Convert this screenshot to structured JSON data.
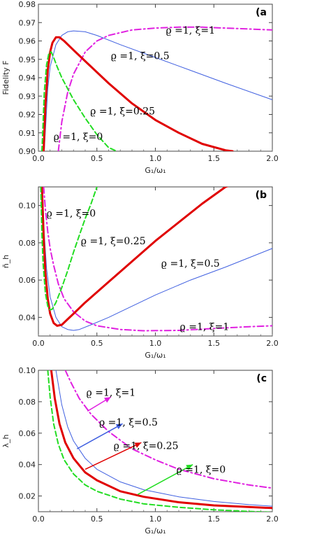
{
  "chart_data": [
    {
      "type": "line",
      "panel_label": "(a",
      "xlabel": "G₁/ω₁",
      "ylabel": "Fidelity F",
      "xlim": [
        0,
        2
      ],
      "ylim": [
        0.9,
        0.98
      ],
      "xticks": [
        "0.0",
        "0.5",
        "1.0",
        "1.5",
        "2.0"
      ],
      "yticks": [
        "0.90",
        "0.91",
        "0.92",
        "0.93",
        "0.94",
        "0.95",
        "0.96",
        "0.97",
        "0.98"
      ],
      "grid": false,
      "series": [
        {
          "name": "ϱ =1, ξ=1",
          "style": "dashdot",
          "color": "#e020e0",
          "x": [
            0.17,
            0.2,
            0.25,
            0.3,
            0.4,
            0.5,
            0.6,
            0.8,
            1.0,
            1.2,
            1.4,
            1.6,
            1.8,
            2.0
          ],
          "y": [
            0.9,
            0.916,
            0.932,
            0.942,
            0.954,
            0.96,
            0.963,
            0.966,
            0.967,
            0.9675,
            0.9675,
            0.967,
            0.9665,
            0.966
          ]
        },
        {
          "name": "ϱ =1, ξ=0.5",
          "style": "solid-thin",
          "color": "#3f5fe0",
          "x": [
            0.05,
            0.08,
            0.1,
            0.15,
            0.2,
            0.25,
            0.3,
            0.4,
            0.5,
            0.7,
            1.0,
            1.3,
            1.6,
            2.0
          ],
          "y": [
            0.9,
            0.934,
            0.946,
            0.958,
            0.963,
            0.965,
            0.9655,
            0.965,
            0.963,
            0.958,
            0.951,
            0.944,
            0.937,
            0.928
          ]
        },
        {
          "name": "ϱ =1, ξ=0.25",
          "style": "solid-thick",
          "color": "#e00000",
          "x": [
            0.045,
            0.06,
            0.08,
            0.1,
            0.12,
            0.15,
            0.18,
            0.22,
            0.3,
            0.4,
            0.6,
            0.8,
            1.0,
            1.2,
            1.4,
            1.6,
            1.66
          ],
          "y": [
            0.9,
            0.925,
            0.944,
            0.954,
            0.959,
            0.962,
            0.962,
            0.96,
            0.955,
            0.949,
            0.937,
            0.926,
            0.917,
            0.91,
            0.904,
            0.9005,
            0.9
          ]
        },
        {
          "name": "ϱ =1, ξ=0",
          "style": "dashed",
          "color": "#22dd22",
          "x": [
            0.03,
            0.04,
            0.05,
            0.07,
            0.09,
            0.11,
            0.13,
            0.16,
            0.2,
            0.3,
            0.4,
            0.5,
            0.6,
            0.67
          ],
          "y": [
            0.9,
            0.915,
            0.932,
            0.947,
            0.9535,
            0.954,
            0.951,
            0.946,
            0.94,
            0.928,
            0.918,
            0.909,
            0.902,
            0.9
          ]
        }
      ],
      "annotations": [
        {
          "text": "ϱ =1, ξ=1",
          "x": 1.3,
          "y": 0.966
        },
        {
          "text": "ϱ =1, ξ=0.5",
          "x": 0.87,
          "y": 0.952
        },
        {
          "text": "ϱ =1, ξ=0.25",
          "x": 0.72,
          "y": 0.922
        },
        {
          "text": "ϱ =1, ξ=0",
          "x": 0.34,
          "y": 0.908
        }
      ]
    },
    {
      "type": "line",
      "panel_label": "(b",
      "xlabel": "G₁/ω₁",
      "ylabel": "n̄_h",
      "xlim": [
        0,
        2
      ],
      "ylim": [
        0.03,
        0.11
      ],
      "xticks": [
        "0.0",
        "0.5",
        "1.0",
        "1.5",
        "2.0"
      ],
      "yticks": [
        "0.04",
        "0.06",
        "0.08",
        "0.10"
      ],
      "grid": false,
      "series": [
        {
          "name": "ϱ =1, ξ=1",
          "style": "dashdot",
          "color": "#e020e0",
          "x": [
            0.045,
            0.06,
            0.08,
            0.1,
            0.13,
            0.17,
            0.22,
            0.3,
            0.4,
            0.5,
            0.7,
            0.9,
            1.2,
            1.5,
            1.8,
            2.0
          ],
          "y": [
            0.11,
            0.098,
            0.086,
            0.077,
            0.068,
            0.058,
            0.05,
            0.043,
            0.038,
            0.0355,
            0.0335,
            0.0328,
            0.033,
            0.034,
            0.035,
            0.0355
          ]
        },
        {
          "name": "ϱ =1, ξ=0.5",
          "style": "solid-thin",
          "color": "#3f5fe0",
          "x": [
            0.035,
            0.05,
            0.07,
            0.1,
            0.15,
            0.2,
            0.25,
            0.3,
            0.35,
            0.45,
            0.6,
            0.8,
            1.0,
            1.3,
            1.6,
            2.0
          ],
          "y": [
            0.11,
            0.085,
            0.066,
            0.051,
            0.04,
            0.035,
            0.0335,
            0.033,
            0.0335,
            0.036,
            0.04,
            0.046,
            0.052,
            0.06,
            0.067,
            0.077
          ]
        },
        {
          "name": "ϱ =1, ξ=0.25",
          "style": "solid-thick",
          "color": "#e00000",
          "x": [
            0.03,
            0.045,
            0.06,
            0.08,
            0.1,
            0.13,
            0.16,
            0.2,
            0.25,
            0.3,
            0.4,
            0.6,
            0.8,
            1.0,
            1.2,
            1.4,
            1.6,
            1.65
          ],
          "y": [
            0.11,
            0.083,
            0.064,
            0.05,
            0.042,
            0.037,
            0.0355,
            0.036,
            0.039,
            0.042,
            0.048,
            0.059,
            0.07,
            0.081,
            0.091,
            0.101,
            0.11,
            0.111
          ]
        },
        {
          "name": "ϱ =1, ξ=0",
          "style": "dashed",
          "color": "#22dd22",
          "x": [
            0.02,
            0.03,
            0.04,
            0.06,
            0.08,
            0.1,
            0.12,
            0.15,
            0.2,
            0.25,
            0.3,
            0.35,
            0.4,
            0.45,
            0.5
          ],
          "y": [
            0.11,
            0.085,
            0.069,
            0.053,
            0.046,
            0.044,
            0.0445,
            0.048,
            0.056,
            0.065,
            0.075,
            0.084,
            0.093,
            0.101,
            0.11
          ]
        }
      ],
      "annotations": [
        {
          "text": "ϱ =1, ξ=0",
          "x": 0.28,
          "y": 0.096
        },
        {
          "text": "ϱ =1, ξ=0.25",
          "x": 0.64,
          "y": 0.081
        },
        {
          "text": "ϱ =1, ξ=0.5",
          "x": 1.3,
          "y": 0.069
        },
        {
          "text": "ϱ =1, ξ=1",
          "x": 1.42,
          "y": 0.035
        }
      ]
    },
    {
      "type": "line",
      "panel_label": "(c",
      "xlabel": "G₁/ω₁",
      "ylabel": "λ_h",
      "xlim": [
        0,
        2
      ],
      "ylim": [
        0.01,
        0.1
      ],
      "xticks": [
        "0.0",
        "0.5",
        "1.0",
        "1.5",
        "2.0"
      ],
      "yticks": [
        "0.02",
        "0.04",
        "0.06",
        "0.08",
        "0.10"
      ],
      "grid": false,
      "series": [
        {
          "name": "ϱ =1, ξ=1",
          "style": "dashdot",
          "color": "#e020e0",
          "x": [
            0.23,
            0.28,
            0.35,
            0.45,
            0.6,
            0.8,
            1.0,
            1.2,
            1.5,
            1.8,
            2.0
          ],
          "y": [
            0.1,
            0.092,
            0.082,
            0.072,
            0.061,
            0.05,
            0.043,
            0.037,
            0.031,
            0.027,
            0.025
          ]
        },
        {
          "name": "ϱ =1, ξ=0.5",
          "style": "solid-thin",
          "color": "#3f5fe0",
          "x": [
            0.15,
            0.2,
            0.25,
            0.3,
            0.4,
            0.5,
            0.7,
            0.9,
            1.2,
            1.5,
            1.8,
            2.0
          ],
          "y": [
            0.1,
            0.078,
            0.064,
            0.055,
            0.044,
            0.037,
            0.029,
            0.024,
            0.0195,
            0.0165,
            0.0145,
            0.0135
          ]
        },
        {
          "name": "ϱ =1, ξ=0.25",
          "style": "solid-thick",
          "color": "#e00000",
          "x": [
            0.11,
            0.14,
            0.18,
            0.23,
            0.3,
            0.4,
            0.5,
            0.7,
            0.9,
            1.2,
            1.5,
            1.8,
            2.0
          ],
          "y": [
            0.1,
            0.082,
            0.066,
            0.054,
            0.044,
            0.035,
            0.03,
            0.023,
            0.0195,
            0.016,
            0.014,
            0.013,
            0.0123
          ]
        },
        {
          "name": "ϱ =1, ξ=0",
          "style": "dashed",
          "color": "#22dd22",
          "x": [
            0.08,
            0.1,
            0.13,
            0.17,
            0.22,
            0.3,
            0.4,
            0.5,
            0.7,
            0.9,
            1.2,
            1.5,
            1.8,
            2.0
          ],
          "y": [
            0.1,
            0.083,
            0.066,
            0.053,
            0.043,
            0.034,
            0.027,
            0.023,
            0.018,
            0.015,
            0.0128,
            0.0112,
            0.0102,
            0.0097
          ]
        }
      ],
      "annotations": [
        {
          "text": "ϱ =1, ξ=1",
          "x": 0.62,
          "y": 0.086
        },
        {
          "text": "ϱ =1, ξ=0.5",
          "x": 0.77,
          "y": 0.067
        },
        {
          "text": "ϱ =1, ξ=0.25",
          "x": 0.92,
          "y": 0.052
        },
        {
          "text": "ϱ =1, ξ=0",
          "x": 1.39,
          "y": 0.037
        }
      ],
      "arrows": [
        {
          "color": "#e020e0",
          "from": [
            0.42,
            0.074
          ],
          "to": [
            0.62,
            0.083
          ]
        },
        {
          "color": "#3f5fe0",
          "from": [
            0.33,
            0.05
          ],
          "to": [
            0.72,
            0.066
          ]
        },
        {
          "color": "#e00000",
          "from": [
            0.4,
            0.037
          ],
          "to": [
            0.88,
            0.054
          ]
        },
        {
          "color": "#22dd22",
          "from": [
            0.85,
            0.021
          ],
          "to": [
            1.32,
            0.04
          ]
        }
      ]
    }
  ]
}
